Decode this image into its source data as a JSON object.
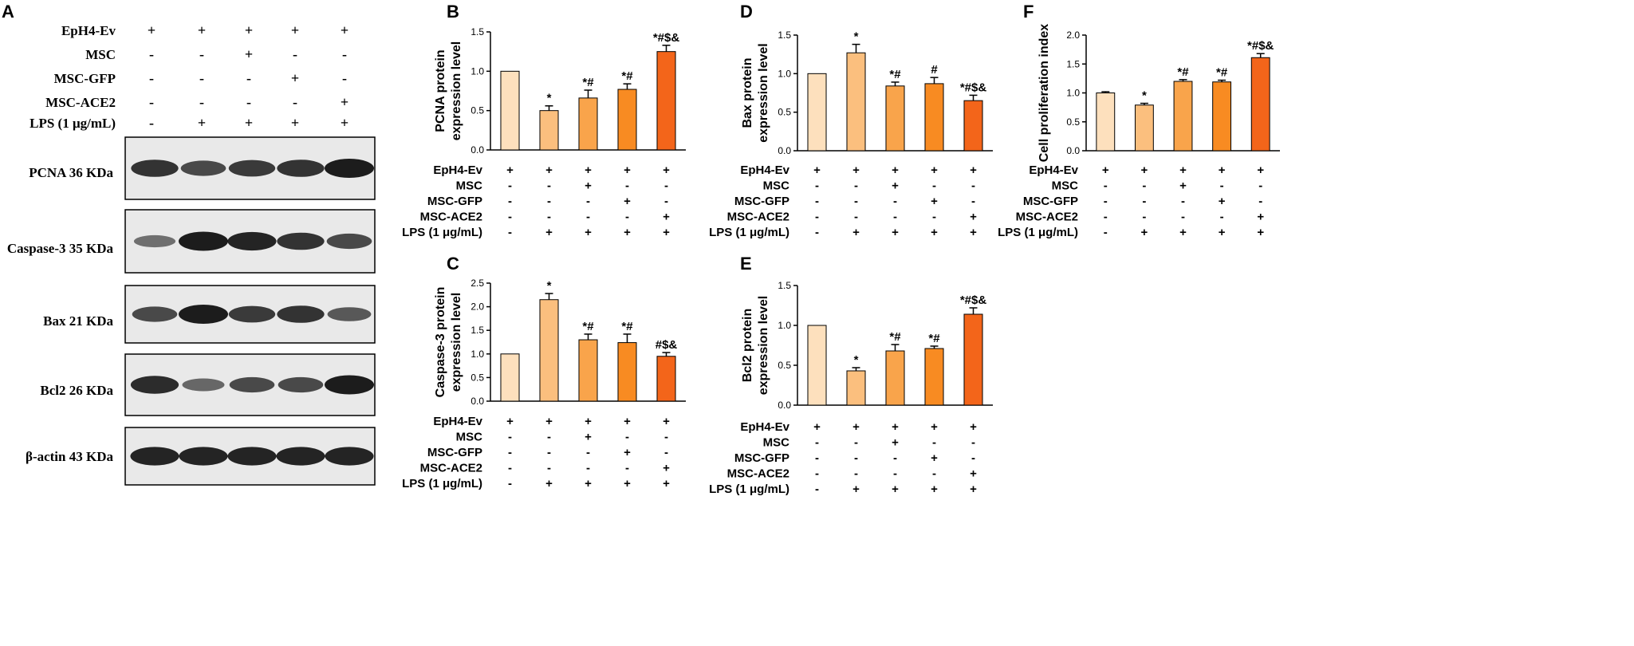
{
  "colors": {
    "bars": [
      "#fde0bd",
      "#fbbf7e",
      "#f9a44b",
      "#f88b22",
      "#f3651a"
    ],
    "axis": "#000000",
    "blot_background": "#e9e9e9",
    "band": "#111111"
  },
  "conditions": {
    "row_labels": [
      "EpH4-Ev",
      "MSC",
      "MSC-GFP",
      "MSC-ACE2",
      "LPS (1 μg/mL)"
    ],
    "signs": [
      [
        "+",
        "+",
        "+",
        "+",
        "+"
      ],
      [
        "-",
        "-",
        "+",
        "-",
        "-"
      ],
      [
        "-",
        "-",
        "-",
        "+",
        "-"
      ],
      [
        "-",
        "-",
        "-",
        "-",
        "+"
      ],
      [
        "-",
        "+",
        "+",
        "+",
        "+"
      ]
    ]
  },
  "western_blot": {
    "panel_letter": "A",
    "blots": [
      {
        "label": "PCNA  36 KDa",
        "intensity": [
          0.85,
          0.7,
          0.8,
          0.85,
          1.0
        ]
      },
      {
        "label": "Caspase-3  35 KDa",
        "intensity": [
          0.45,
          1.0,
          0.95,
          0.85,
          0.7
        ]
      },
      {
        "label": "Bax  21 KDa",
        "intensity": [
          0.7,
          1.0,
          0.8,
          0.85,
          0.6
        ]
      },
      {
        "label": "Bcl2  26 KDa",
        "intensity": [
          0.9,
          0.5,
          0.7,
          0.7,
          1.0
        ]
      },
      {
        "label": "β-actin  43 KDa",
        "intensity": [
          0.95,
          0.95,
          0.95,
          0.95,
          0.95
        ]
      }
    ]
  },
  "chart_data": [
    {
      "panel_letter": "B",
      "type": "bar",
      "ylabel": [
        "PCNA protein",
        "expression level"
      ],
      "categories": [
        "EpH4-Ev",
        "EpH4-Ev + LPS",
        "MSC + LPS",
        "MSC-GFP + LPS",
        "MSC-ACE2 + LPS"
      ],
      "values": [
        1.0,
        0.5,
        0.66,
        0.77,
        1.25
      ],
      "errors": [
        0,
        0.06,
        0.1,
        0.07,
        0.08
      ],
      "annotations": [
        "",
        "*",
        "*#",
        "*#",
        "*#$&"
      ],
      "ylim": [
        0,
        1.5
      ],
      "yticks": [
        0.0,
        0.5,
        1.0,
        1.5
      ],
      "ytick_labels": [
        "0.0",
        "0.5",
        "1.0",
        "1.5"
      ]
    },
    {
      "panel_letter": "C",
      "type": "bar",
      "ylabel": [
        "Caspase-3 protein",
        "expression level"
      ],
      "categories": [
        "EpH4-Ev",
        "EpH4-Ev + LPS",
        "MSC + LPS",
        "MSC-GFP + LPS",
        "MSC-ACE2 + LPS"
      ],
      "values": [
        1.0,
        2.15,
        1.3,
        1.24,
        0.95
      ],
      "errors": [
        0,
        0.13,
        0.12,
        0.18,
        0.08
      ],
      "annotations": [
        "",
        "*",
        "*#",
        "*#",
        "#$&"
      ],
      "ylim": [
        0,
        2.5
      ],
      "yticks": [
        0.0,
        0.5,
        1.0,
        1.5,
        2.0,
        2.5
      ],
      "ytick_labels": [
        "0.0",
        "0.5",
        "1.0",
        "1.5",
        "2.0",
        "2.5"
      ]
    },
    {
      "panel_letter": "D",
      "type": "bar",
      "ylabel": [
        "Bax protein",
        "expression level"
      ],
      "categories": [
        "EpH4-Ev",
        "EpH4-Ev + LPS",
        "MSC + LPS",
        "MSC-GFP + LPS",
        "MSC-ACE2 + LPS"
      ],
      "values": [
        1.0,
        1.27,
        0.84,
        0.87,
        0.65
      ],
      "errors": [
        0,
        0.11,
        0.05,
        0.08,
        0.07
      ],
      "annotations": [
        "",
        "*",
        "*#",
        "#",
        "*#$&"
      ],
      "ylim": [
        0,
        1.5
      ],
      "yticks": [
        0.0,
        0.5,
        1.0,
        1.5
      ],
      "ytick_labels": [
        "0.0",
        "0.5",
        "1.0",
        "1.5"
      ]
    },
    {
      "panel_letter": "E",
      "type": "bar",
      "ylabel": [
        "Bcl2 protein",
        "expression level"
      ],
      "categories": [
        "EpH4-Ev",
        "EpH4-Ev + LPS",
        "MSC + LPS",
        "MSC-GFP + LPS",
        "MSC-ACE2 + LPS"
      ],
      "values": [
        1.0,
        0.43,
        0.68,
        0.71,
        1.14
      ],
      "errors": [
        0,
        0.04,
        0.08,
        0.03,
        0.08
      ],
      "annotations": [
        "",
        "*",
        "*#",
        "*#",
        "*#$&"
      ],
      "ylim": [
        0,
        1.5
      ],
      "yticks": [
        0.0,
        0.5,
        1.0,
        1.5
      ],
      "ytick_labels": [
        "0.0",
        "0.5",
        "1.0",
        "1.5"
      ]
    },
    {
      "panel_letter": "F",
      "type": "bar",
      "ylabel": [
        "Cell proliferation index"
      ],
      "categories": [
        "EpH4-Ev",
        "EpH4-Ev + LPS",
        "MSC + LPS",
        "MSC-GFP + LPS",
        "MSC-ACE2 + LPS"
      ],
      "values": [
        1.0,
        0.79,
        1.2,
        1.19,
        1.61
      ],
      "errors": [
        0.02,
        0.03,
        0.03,
        0.03,
        0.07
      ],
      "annotations": [
        "",
        "*",
        "*#",
        "*#",
        "*#$&"
      ],
      "ylim": [
        0,
        2.0
      ],
      "yticks": [
        0.0,
        0.5,
        1.0,
        1.5,
        2.0
      ],
      "ytick_labels": [
        "0.0",
        "0.5",
        "1.0",
        "1.5",
        "2.0"
      ]
    }
  ]
}
